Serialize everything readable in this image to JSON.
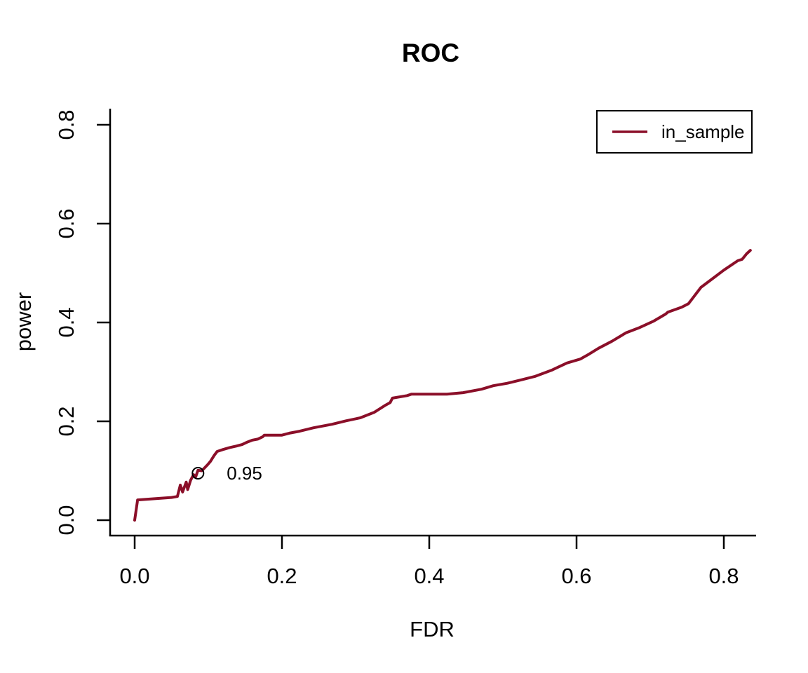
{
  "window": {
    "background": "#ffffff"
  },
  "chart_data": {
    "type": "line",
    "title": "ROC",
    "xlabel": "FDR",
    "ylabel": "power",
    "xlim": [
      0,
      0.84
    ],
    "ylim": [
      0,
      0.8
    ],
    "xticks": [
      0.0,
      0.2,
      0.4,
      0.6,
      0.8
    ],
    "yticks": [
      0.0,
      0.2,
      0.4,
      0.6,
      0.8
    ],
    "grid": false,
    "axis_color": "#000000",
    "legend": {
      "position": "top-right",
      "entries": [
        {
          "label": "in_sample",
          "color": "#8B0F29"
        }
      ]
    },
    "series": [
      {
        "name": "in_sample",
        "color": "#8B0F29",
        "points": [
          [
            0.0,
            0.0
          ],
          [
            0.004,
            0.041
          ],
          [
            0.05,
            0.046
          ],
          [
            0.058,
            0.048
          ],
          [
            0.062,
            0.071
          ],
          [
            0.065,
            0.057
          ],
          [
            0.07,
            0.077
          ],
          [
            0.072,
            0.062
          ],
          [
            0.076,
            0.081
          ],
          [
            0.08,
            0.092
          ],
          [
            0.083,
            0.088
          ],
          [
            0.086,
            0.101
          ],
          [
            0.091,
            0.1
          ],
          [
            0.095,
            0.106
          ],
          [
            0.099,
            0.112
          ],
          [
            0.103,
            0.119
          ],
          [
            0.108,
            0.131
          ],
          [
            0.112,
            0.139
          ],
          [
            0.12,
            0.143
          ],
          [
            0.129,
            0.147
          ],
          [
            0.138,
            0.15
          ],
          [
            0.146,
            0.153
          ],
          [
            0.153,
            0.158
          ],
          [
            0.16,
            0.162
          ],
          [
            0.167,
            0.164
          ],
          [
            0.174,
            0.169
          ],
          [
            0.176,
            0.172
          ],
          [
            0.2,
            0.172
          ],
          [
            0.21,
            0.176
          ],
          [
            0.224,
            0.18
          ],
          [
            0.243,
            0.187
          ],
          [
            0.268,
            0.194
          ],
          [
            0.287,
            0.201
          ],
          [
            0.306,
            0.207
          ],
          [
            0.325,
            0.218
          ],
          [
            0.341,
            0.233
          ],
          [
            0.347,
            0.238
          ],
          [
            0.35,
            0.247
          ],
          [
            0.37,
            0.252
          ],
          [
            0.376,
            0.255
          ],
          [
            0.424,
            0.255
          ],
          [
            0.446,
            0.258
          ],
          [
            0.471,
            0.265
          ],
          [
            0.487,
            0.272
          ],
          [
            0.506,
            0.277
          ],
          [
            0.525,
            0.284
          ],
          [
            0.544,
            0.291
          ],
          [
            0.567,
            0.304
          ],
          [
            0.587,
            0.318
          ],
          [
            0.605,
            0.326
          ],
          [
            0.617,
            0.336
          ],
          [
            0.63,
            0.348
          ],
          [
            0.648,
            0.362
          ],
          [
            0.667,
            0.379
          ],
          [
            0.686,
            0.39
          ],
          [
            0.705,
            0.403
          ],
          [
            0.721,
            0.417
          ],
          [
            0.724,
            0.421
          ],
          [
            0.743,
            0.431
          ],
          [
            0.752,
            0.438
          ],
          [
            0.769,
            0.471
          ],
          [
            0.784,
            0.488
          ],
          [
            0.8,
            0.506
          ],
          [
            0.819,
            0.525
          ],
          [
            0.825,
            0.528
          ],
          [
            0.831,
            0.539
          ],
          [
            0.836,
            0.546
          ]
        ]
      }
    ],
    "marker_point": {
      "x": 0.086,
      "y": 0.095,
      "label": "0.95",
      "label_x": 0.125,
      "label_color": "#8B0F29",
      "marker_color": "#000000"
    }
  }
}
